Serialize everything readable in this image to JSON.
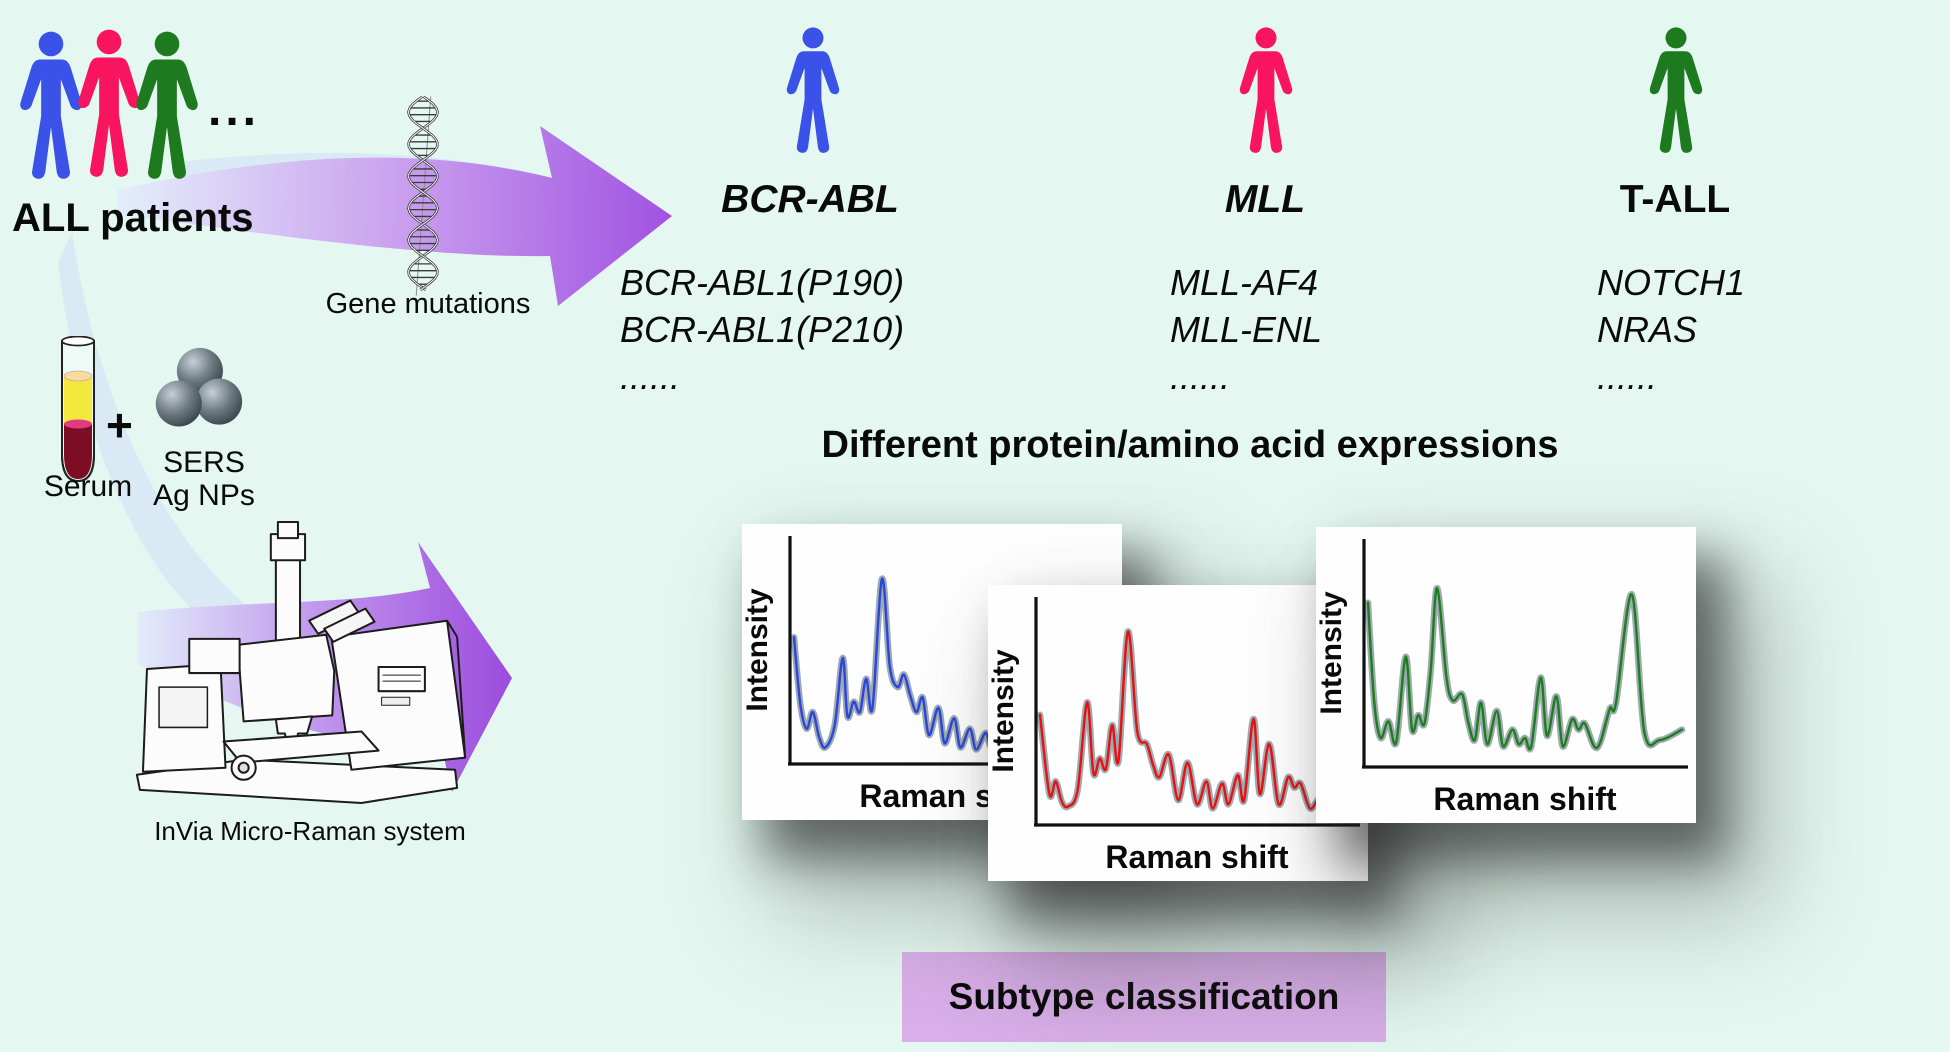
{
  "colors": {
    "background": "#e4f8f1",
    "person_blue": "#3b52e8",
    "person_pink": "#f9145f",
    "person_green": "#1e7a1e",
    "arrow_purple": "#a153e2",
    "arrow_light": "#dfe9fb",
    "swoosh_blue": "#cfdff6",
    "box_purple": "#d9afe9"
  },
  "patients": {
    "label": "ALL patients",
    "dots": "..."
  },
  "gene_mutations_label": "Gene mutations",
  "columns": [
    {
      "title": "BCR-ABL",
      "genes": [
        "BCR-ABL1(P190)",
        "BCR-ABL1(P210)",
        "......"
      ]
    },
    {
      "title": "MLL",
      "genes": [
        "MLL-AF4",
        "MLL-ENL",
        "......"
      ]
    },
    {
      "title": "T-ALL",
      "genes": [
        "NOTCH1",
        "NRAS",
        "......"
      ]
    }
  ],
  "expressions_heading": "Different protein/amino acid expressions",
  "prep": {
    "serum": "Serum",
    "plus": "+",
    "sers": "SERS",
    "ag_nps": "Ag NPs"
  },
  "instrument_label": "InVia Micro-Raman system",
  "classification_label": "Subtype classification",
  "chart_data": [
    {
      "type": "line",
      "name": "BCR-ABL serum SERS spectrum",
      "color": "#2b46d9",
      "xlabel": "Raman shift",
      "ylabel": "Intensity",
      "grid": false,
      "legend": "none",
      "points": [
        [
          0,
          60
        ],
        [
          2,
          28
        ],
        [
          4,
          16
        ],
        [
          6,
          24
        ],
        [
          8,
          12
        ],
        [
          10,
          7
        ],
        [
          13,
          18
        ],
        [
          15.5,
          50
        ],
        [
          17,
          22
        ],
        [
          19,
          29
        ],
        [
          21,
          24
        ],
        [
          23,
          40
        ],
        [
          25,
          26
        ],
        [
          28,
          88
        ],
        [
          30.5,
          46
        ],
        [
          33,
          36
        ],
        [
          35,
          42
        ],
        [
          37,
          32
        ],
        [
          39,
          24
        ],
        [
          41,
          31
        ],
        [
          43,
          13
        ],
        [
          46,
          26
        ],
        [
          48,
          9
        ],
        [
          51,
          21
        ],
        [
          53,
          7
        ],
        [
          56,
          16
        ],
        [
          58,
          6
        ],
        [
          61,
          14
        ],
        [
          63,
          9
        ],
        [
          66,
          43
        ],
        [
          68,
          11
        ],
        [
          71,
          36
        ],
        [
          73,
          8
        ],
        [
          75,
          11
        ],
        [
          78,
          13
        ],
        [
          80,
          10
        ],
        [
          85,
          12
        ],
        [
          92,
          10
        ],
        [
          100,
          12
        ]
      ]
    },
    {
      "type": "line",
      "name": "MLL serum SERS spectrum",
      "color": "#e51212",
      "xlabel": "Raman shift",
      "ylabel": "Intensity",
      "grid": false,
      "legend": "none",
      "points": [
        [
          0,
          52
        ],
        [
          3,
          14
        ],
        [
          5,
          20
        ],
        [
          7,
          10
        ],
        [
          9,
          8
        ],
        [
          12,
          16
        ],
        [
          15,
          58
        ],
        [
          17,
          24
        ],
        [
          19,
          31
        ],
        [
          21,
          26
        ],
        [
          23,
          47
        ],
        [
          25,
          30
        ],
        [
          28,
          92
        ],
        [
          31,
          44
        ],
        [
          34,
          38
        ],
        [
          36,
          28
        ],
        [
          38,
          22
        ],
        [
          41,
          33
        ],
        [
          44,
          11
        ],
        [
          47,
          29
        ],
        [
          50,
          9
        ],
        [
          53,
          20
        ],
        [
          55,
          7
        ],
        [
          58,
          19
        ],
        [
          60,
          9
        ],
        [
          63,
          23
        ],
        [
          65,
          11
        ],
        [
          68,
          50
        ],
        [
          70,
          14
        ],
        [
          73,
          38
        ],
        [
          76,
          9
        ],
        [
          79,
          22
        ],
        [
          81,
          17
        ],
        [
          83,
          19
        ],
        [
          86,
          7
        ],
        [
          89,
          12
        ],
        [
          94,
          14
        ],
        [
          98,
          42
        ],
        [
          100,
          38
        ]
      ]
    },
    {
      "type": "line",
      "name": "T-ALL serum SERS spectrum",
      "color": "#1e7e1e",
      "xlabel": "Raman shift",
      "ylabel": "Intensity",
      "grid": false,
      "legend": "none",
      "points": [
        [
          0,
          78
        ],
        [
          2,
          30
        ],
        [
          4,
          13
        ],
        [
          6.5,
          21
        ],
        [
          9,
          11
        ],
        [
          12,
          52
        ],
        [
          14,
          17
        ],
        [
          16,
          24
        ],
        [
          18,
          20
        ],
        [
          20,
          46
        ],
        [
          22,
          85
        ],
        [
          25,
          42
        ],
        [
          27,
          31
        ],
        [
          30,
          34
        ],
        [
          32,
          20
        ],
        [
          34,
          12
        ],
        [
          36,
          30
        ],
        [
          38,
          10
        ],
        [
          41,
          26
        ],
        [
          43,
          9
        ],
        [
          46,
          17
        ],
        [
          48,
          10
        ],
        [
          50,
          13
        ],
        [
          52,
          9
        ],
        [
          55,
          42
        ],
        [
          57,
          14
        ],
        [
          60,
          33
        ],
        [
          62,
          9
        ],
        [
          65,
          22
        ],
        [
          67,
          17
        ],
        [
          69,
          20
        ],
        [
          72,
          9
        ],
        [
          74,
          11
        ],
        [
          77,
          27
        ],
        [
          79,
          30
        ],
        [
          84,
          82
        ],
        [
          88,
          16
        ],
        [
          93,
          12
        ],
        [
          100,
          17
        ]
      ]
    }
  ]
}
